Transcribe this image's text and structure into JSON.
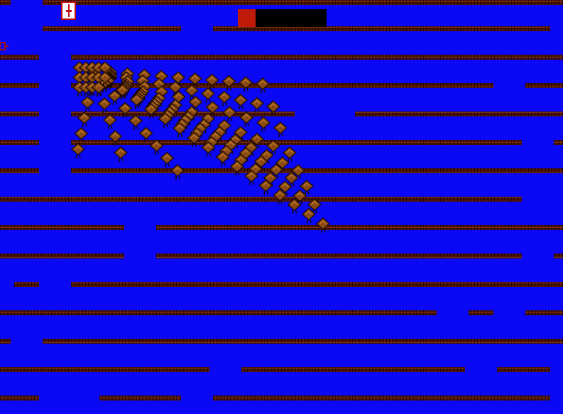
{
  "hud": {
    "health": 20,
    "health_max": 100
  }
}
